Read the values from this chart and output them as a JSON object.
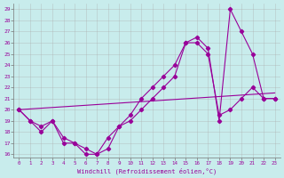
{
  "xlabel": "Windchill (Refroidissement éolien,°C)",
  "background_color": "#c8ecec",
  "line_color": "#990099",
  "xlim_min": -0.5,
  "xlim_max": 23.5,
  "ylim_min": 15.7,
  "ylim_max": 29.5,
  "yticks": [
    16,
    17,
    18,
    19,
    20,
    21,
    22,
    23,
    24,
    25,
    26,
    27,
    28,
    29
  ],
  "xticks": [
    0,
    1,
    2,
    3,
    4,
    5,
    6,
    7,
    8,
    9,
    10,
    11,
    12,
    13,
    14,
    15,
    16,
    17,
    18,
    19,
    20,
    21,
    22,
    23
  ],
  "line1_x": [
    0,
    1,
    2,
    3,
    4,
    5,
    6,
    7,
    8,
    9,
    10,
    11,
    12,
    13,
    14,
    15,
    16,
    17,
    18,
    19,
    20,
    21,
    22,
    23
  ],
  "line1_y": [
    20,
    19,
    18,
    19,
    17,
    17,
    16,
    16,
    17.5,
    18.5,
    19,
    20,
    21,
    22,
    23,
    26,
    26,
    25,
    19.5,
    20,
    21,
    22,
    21,
    21
  ],
  "line2_x": [
    0,
    1,
    2,
    3,
    4,
    5,
    6,
    7,
    8,
    9,
    10,
    11,
    12,
    13,
    14,
    15,
    16,
    17,
    18,
    19,
    20,
    21,
    22,
    23
  ],
  "line2_y": [
    20,
    19,
    18.5,
    19,
    17.5,
    17,
    16.5,
    16,
    16.5,
    18.5,
    19.5,
    21,
    22,
    23,
    24,
    26,
    26.5,
    25.5,
    19,
    29,
    27,
    25,
    21,
    21
  ],
  "line3_x": [
    0,
    23
  ],
  "line3_y": [
    20,
    21.5
  ],
  "grid_color": "#aaaaaa",
  "font_family": "monospace"
}
